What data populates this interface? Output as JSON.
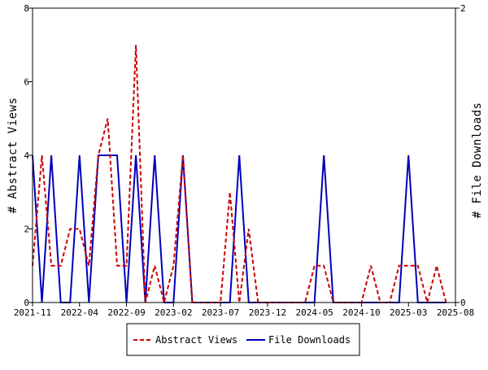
{
  "chart_data": {
    "type": "line",
    "x": [
      "2021-11",
      "2021-12",
      "2022-01",
      "2022-02",
      "2022-03",
      "2022-04",
      "2022-05",
      "2022-06",
      "2022-07",
      "2022-08",
      "2022-09",
      "2022-10",
      "2022-11",
      "2022-12",
      "2023-01",
      "2023-02",
      "2023-03",
      "2023-04",
      "2023-05",
      "2023-06",
      "2023-07",
      "2023-08",
      "2023-09",
      "2023-10",
      "2023-11",
      "2023-12",
      "2024-01",
      "2024-02",
      "2024-03",
      "2024-04",
      "2024-05",
      "2024-06",
      "2024-07",
      "2024-08",
      "2024-09",
      "2024-10",
      "2024-11",
      "2024-12",
      "2025-01",
      "2025-02",
      "2025-03",
      "2025-04",
      "2025-05",
      "2025-06",
      "2025-07"
    ],
    "x_ticks": [
      "2021-11",
      "2022-04",
      "2022-09",
      "2023-02",
      "2023-07",
      "2023-12",
      "2024-05",
      "2024-10",
      "2025-03",
      "2025-08"
    ],
    "series": [
      {
        "name": "Abstract Views",
        "axis": "left",
        "color": "#cc0000",
        "style": "dashed",
        "values": [
          1,
          4,
          1,
          1,
          2,
          2,
          1,
          4,
          5,
          1,
          1,
          7,
          0,
          1,
          0,
          1,
          4,
          0,
          0,
          0,
          0,
          3,
          0,
          2,
          0,
          0,
          0,
          0,
          0,
          0,
          1,
          1,
          0,
          0,
          0,
          0,
          1,
          0,
          0,
          1,
          1,
          1,
          0,
          1,
          0
        ]
      },
      {
        "name": "File Downloads",
        "axis": "right",
        "color": "#0000bb",
        "style": "solid",
        "values": [
          1,
          0,
          1,
          0,
          0,
          1,
          0,
          1,
          1,
          1,
          0,
          1,
          0,
          1,
          0,
          0,
          1,
          0,
          0,
          0,
          0,
          0,
          1,
          0,
          0,
          0,
          0,
          0,
          0,
          0,
          0,
          1,
          0,
          0,
          0,
          0,
          0,
          0,
          0,
          0,
          1,
          0,
          0,
          0,
          0
        ]
      }
    ],
    "ylabel": "# Abstract Views",
    "y2label": "# File Downloads",
    "ylim": [
      0,
      8
    ],
    "y_ticks": [
      0,
      2,
      4,
      6,
      8
    ],
    "y2lim": [
      0,
      2
    ],
    "y2_ticks": [
      0,
      2
    ],
    "grid": false,
    "legend_position": "bottom-center"
  }
}
